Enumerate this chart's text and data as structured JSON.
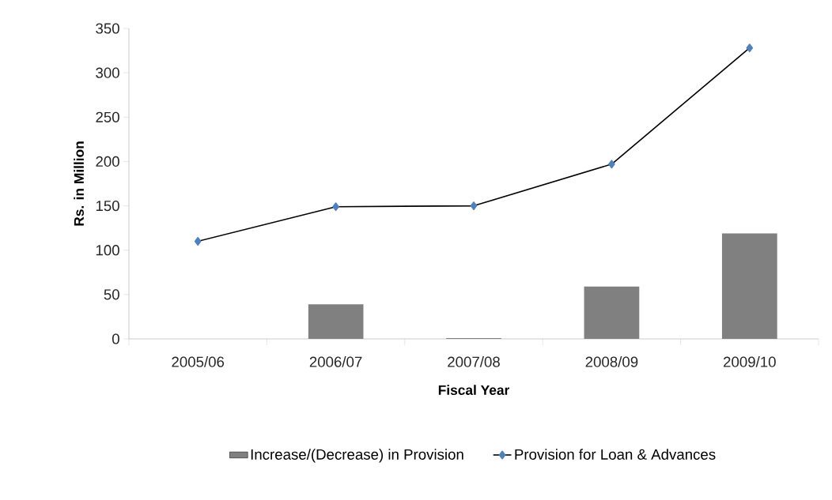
{
  "chart_data": {
    "type": "bar",
    "xlabel": "Fiscal Year",
    "ylabel": "Rs. in Million",
    "categories": [
      "2005/06",
      "2006/07",
      "2007/08",
      "2008/09",
      "2009/10"
    ],
    "series": [
      {
        "name": "Increase/(Decrease) in Provision",
        "color": "#808080",
        "values": [
          null,
          39,
          1,
          59,
          119
        ]
      },
      {
        "name": "Provision for  Loan & Advances",
        "type": "line",
        "color": "#000000",
        "marker": "diamond",
        "colors": [
          "#4f81bd",
          "#4f81bd",
          "#4f81bd",
          "#4f81bd",
          "#4f81bd"
        ],
        "values": [
          110,
          149,
          150,
          197,
          328
        ]
      }
    ],
    "ylim": [
      0,
      350
    ],
    "yticks": [
      0,
      50,
      100,
      150,
      200,
      250,
      300,
      350
    ],
    "grid": false,
    "legend": "bottom"
  }
}
